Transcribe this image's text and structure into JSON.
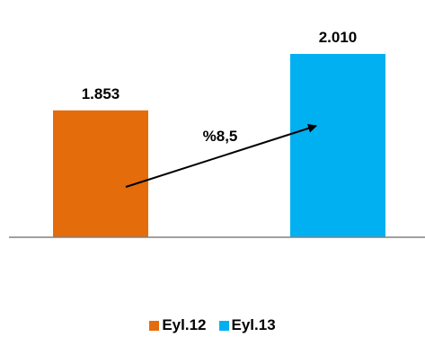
{
  "chart_data": {
    "type": "bar",
    "categories": [
      "Eyl.12",
      "Eyl.13"
    ],
    "values": [
      1853,
      2010
    ],
    "value_labels": [
      "1.853",
      "2.010"
    ],
    "colors": [
      "#e46c0a",
      "#00b0f0"
    ],
    "ylim": [
      1500,
      2050
    ],
    "legend": {
      "placement": "bottom",
      "entries": [
        {
          "label": "Eyl.12",
          "color": "#e46c0a"
        },
        {
          "label": "Eyl.13",
          "color": "#00b0f0"
        }
      ]
    },
    "annotation": {
      "text": "%8,5",
      "type": "arrow",
      "from_category": "Eyl.12",
      "to_category": "Eyl.13"
    },
    "grid": false,
    "title": "",
    "xlabel": "",
    "ylabel": ""
  }
}
